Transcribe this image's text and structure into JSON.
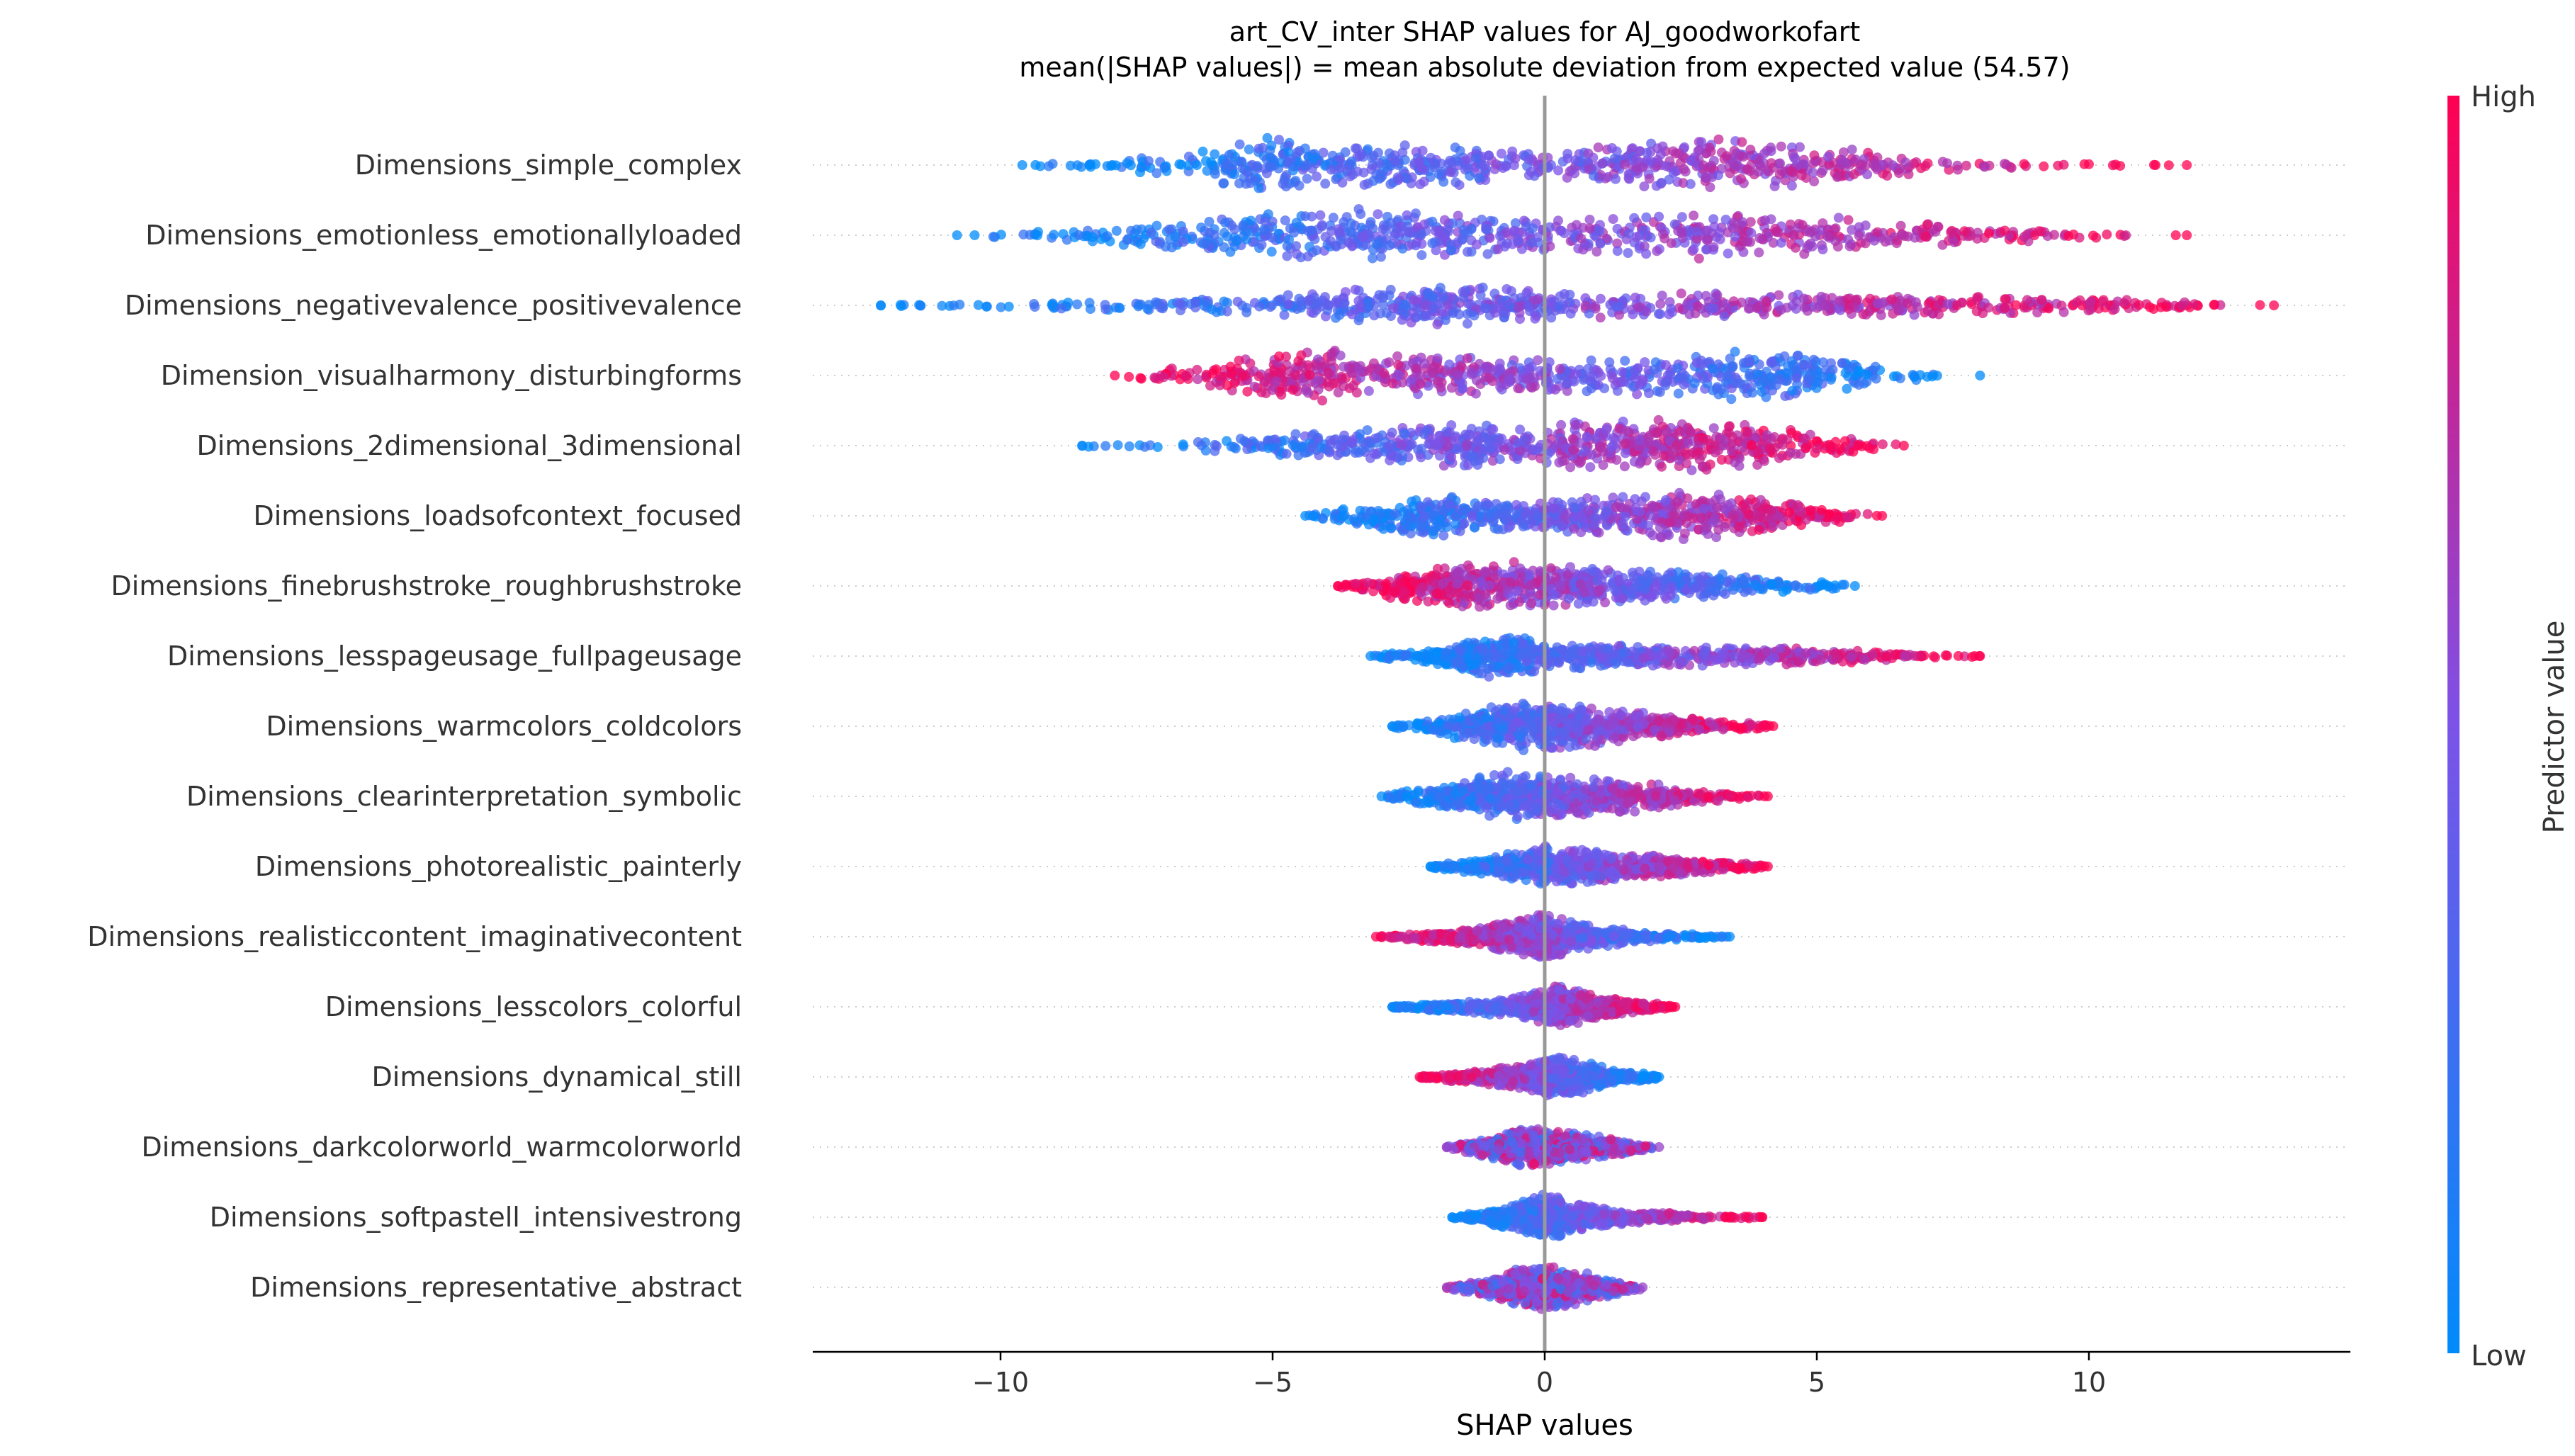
{
  "chart_data": {
    "type": "scatter",
    "subtype": "beeswarm",
    "title": "art_CV_inter SHAP values for AJ_goodworkofart",
    "subtitle": "mean(|SHAP values|) = mean absolute deviation from expected value (54.57)",
    "xlabel": "SHAP values",
    "xlim": [
      -13.4,
      14.8
    ],
    "xticks": [
      {
        "value": -10,
        "label": "−10"
      },
      {
        "value": -5,
        "label": "−5"
      },
      {
        "value": 0,
        "label": "0"
      },
      {
        "value": 5,
        "label": "5"
      },
      {
        "value": 10,
        "label": "10"
      }
    ],
    "zero_line": true,
    "grid": false,
    "colorbar": {
      "label": "Predictor value",
      "high_label": "High",
      "low_label": "Low",
      "low_color": "#008bfb",
      "high_color": "#ff0052"
    },
    "features": [
      {
        "name": "Dimensions_simple_complex",
        "min": -9.6,
        "max": 11.8,
        "density": [
          [
            -9.6,
            0.05
          ],
          [
            -8,
            0.15
          ],
          [
            -6.5,
            0.5
          ],
          [
            -5,
            0.95
          ],
          [
            -3.5,
            0.7
          ],
          [
            -2.5,
            0.85
          ],
          [
            -1,
            0.6
          ],
          [
            0,
            0.5
          ],
          [
            1.5,
            0.75
          ],
          [
            3,
            1.0
          ],
          [
            4.5,
            0.8
          ],
          [
            6,
            0.45
          ],
          [
            7.5,
            0.2
          ],
          [
            9,
            0.08
          ],
          [
            10.3,
            0.04
          ],
          [
            11.8,
            0.02
          ]
        ],
        "color_trend": "increasing"
      },
      {
        "name": "Dimensions_emotionless_emotionallyloaded",
        "min": -10.8,
        "max": 11.8,
        "density": [
          [
            -10.8,
            0.05
          ],
          [
            -9,
            0.15
          ],
          [
            -7,
            0.5
          ],
          [
            -5,
            0.85
          ],
          [
            -3.5,
            0.9
          ],
          [
            -2,
            0.85
          ],
          [
            -1,
            0.7
          ],
          [
            0,
            0.55
          ],
          [
            1.5,
            0.7
          ],
          [
            3,
            0.85
          ],
          [
            4.5,
            0.75
          ],
          [
            6,
            0.55
          ],
          [
            7.5,
            0.4
          ],
          [
            9,
            0.22
          ],
          [
            10.5,
            0.08
          ],
          [
            11.8,
            0.02
          ]
        ],
        "color_trend": "increasing"
      },
      {
        "name": "Dimensions_negativevalence_positivevalence",
        "min": -12.2,
        "max": 13.4,
        "density": [
          [
            -12.2,
            0.03
          ],
          [
            -10,
            0.1
          ],
          [
            -7,
            0.2
          ],
          [
            -5,
            0.35
          ],
          [
            -3,
            0.6
          ],
          [
            -2,
            0.75
          ],
          [
            -1,
            0.65
          ],
          [
            0,
            0.5
          ],
          [
            2,
            0.45
          ],
          [
            4,
            0.4
          ],
          [
            6,
            0.38
          ],
          [
            8,
            0.35
          ],
          [
            10,
            0.28
          ],
          [
            11.5,
            0.15
          ],
          [
            12.5,
            0.05
          ],
          [
            13.4,
            0.02
          ]
        ],
        "color_trend": "increasing"
      },
      {
        "name": "Dimension_visualharmony_disturbingforms",
        "min": -7.9,
        "max": 8.0,
        "density": [
          [
            -7.9,
            0.05
          ],
          [
            -6.5,
            0.35
          ],
          [
            -5,
            0.8
          ],
          [
            -4,
            0.95
          ],
          [
            -3,
            0.65
          ],
          [
            -1.5,
            0.7
          ],
          [
            0,
            0.6
          ],
          [
            1.5,
            0.65
          ],
          [
            3,
            0.8
          ],
          [
            4.2,
            0.95
          ],
          [
            5.5,
            0.55
          ],
          [
            6.5,
            0.25
          ],
          [
            8,
            0.04
          ]
        ],
        "color_trend": "decreasing"
      },
      {
        "name": "Dimensions_2dimensional_3dimensional",
        "min": -8.5,
        "max": 6.6,
        "density": [
          [
            -8.5,
            0.05
          ],
          [
            -7,
            0.12
          ],
          [
            -5,
            0.35
          ],
          [
            -3.5,
            0.6
          ],
          [
            -2,
            0.75
          ],
          [
            -0.5,
            0.8
          ],
          [
            1,
            0.85
          ],
          [
            2.8,
            0.95
          ],
          [
            4.2,
            0.65
          ],
          [
            5.5,
            0.3
          ],
          [
            6.6,
            0.05
          ]
        ],
        "color_trend": "increasing"
      },
      {
        "name": "Dimensions_loadsofcontext_focused",
        "min": -4.4,
        "max": 6.2,
        "density": [
          [
            -4.4,
            0.05
          ],
          [
            -3.2,
            0.4
          ],
          [
            -2.2,
            0.85
          ],
          [
            -1.3,
            0.55
          ],
          [
            -0.3,
            0.45
          ],
          [
            0.8,
            0.7
          ],
          [
            2,
            0.85
          ],
          [
            3,
            0.8
          ],
          [
            4.2,
            0.6
          ],
          [
            5.2,
            0.35
          ],
          [
            6.2,
            0.05
          ]
        ],
        "color_trend": "increasing"
      },
      {
        "name": "Dimensions_finebrushstroke_roughbrushstroke",
        "min": -3.8,
        "max": 5.7,
        "density": [
          [
            -3.8,
            0.05
          ],
          [
            -2.8,
            0.5
          ],
          [
            -1.2,
            0.9
          ],
          [
            0,
            0.75
          ],
          [
            1.5,
            0.6
          ],
          [
            3,
            0.45
          ],
          [
            4.2,
            0.3
          ],
          [
            5.7,
            0.05
          ]
        ],
        "color_trend": "decreasing"
      },
      {
        "name": "Dimensions_lesspageusage_fullpageusage",
        "min": -3.2,
        "max": 8.0,
        "density": [
          [
            -3.2,
            0.05
          ],
          [
            -1.8,
            0.4
          ],
          [
            -0.8,
            0.9
          ],
          [
            0.2,
            0.45
          ],
          [
            1.5,
            0.4
          ],
          [
            3,
            0.35
          ],
          [
            4.5,
            0.3
          ],
          [
            6,
            0.2
          ],
          [
            6.8,
            0.08
          ],
          [
            8,
            0.03
          ]
        ],
        "color_trend": "increasing"
      },
      {
        "name": "Dimensions_warmcolors_coldcolors",
        "min": -2.8,
        "max": 4.2,
        "density": [
          [
            -2.8,
            0.05
          ],
          [
            -1.5,
            0.5
          ],
          [
            -0.5,
            0.85
          ],
          [
            0.5,
            0.8
          ],
          [
            1.5,
            0.55
          ],
          [
            2.8,
            0.3
          ],
          [
            4.2,
            0.05
          ]
        ],
        "color_trend": "increasing"
      },
      {
        "name": "Dimensions_clearinterpretation_symbolic",
        "min": -3.0,
        "max": 4.1,
        "density": [
          [
            -3,
            0.05
          ],
          [
            -1.8,
            0.45
          ],
          [
            -0.8,
            0.85
          ],
          [
            0.2,
            0.75
          ],
          [
            1,
            0.7
          ],
          [
            2.2,
            0.4
          ],
          [
            3.3,
            0.15
          ],
          [
            4.1,
            0.05
          ]
        ],
        "color_trend": "increasing"
      },
      {
        "name": "Dimensions_photorealistic_painterly",
        "min": -2.1,
        "max": 4.1,
        "density": [
          [
            -2.1,
            0.05
          ],
          [
            -1,
            0.35
          ],
          [
            0,
            0.7
          ],
          [
            0.8,
            0.6
          ],
          [
            1.8,
            0.4
          ],
          [
            3,
            0.25
          ],
          [
            4.1,
            0.05
          ]
        ],
        "color_trend": "increasing"
      },
      {
        "name": "Dimensions_realisticcontent_imaginativecontent",
        "min": -3.1,
        "max": 3.4,
        "density": [
          [
            -3.1,
            0.03
          ],
          [
            -2.2,
            0.2
          ],
          [
            -1,
            0.4
          ],
          [
            0,
            0.85
          ],
          [
            1,
            0.35
          ],
          [
            2.2,
            0.15
          ],
          [
            3.4,
            0.04
          ]
        ],
        "color_trend": "decreasing"
      },
      {
        "name": "Dimensions_lesscolors_colorful",
        "min": -2.8,
        "max": 2.4,
        "density": [
          [
            -2.8,
            0.05
          ],
          [
            -1.5,
            0.2
          ],
          [
            -0.5,
            0.35
          ],
          [
            0.2,
            0.75
          ],
          [
            1,
            0.4
          ],
          [
            1.8,
            0.2
          ],
          [
            2.4,
            0.04
          ]
        ],
        "color_trend": "increasing"
      },
      {
        "name": "Dimensions_dynamical_still",
        "min": -2.3,
        "max": 2.1,
        "density": [
          [
            -2.3,
            0.05
          ],
          [
            -1.2,
            0.25
          ],
          [
            -0.3,
            0.45
          ],
          [
            0.3,
            0.8
          ],
          [
            1,
            0.4
          ],
          [
            2.1,
            0.05
          ]
        ],
        "color_trend": "decreasing"
      },
      {
        "name": "Dimensions_darkcolorworld_warmcolorworld",
        "min": -1.8,
        "max": 2.1,
        "density": [
          [
            -1.8,
            0.05
          ],
          [
            -1,
            0.4
          ],
          [
            -0.2,
            0.75
          ],
          [
            0.5,
            0.5
          ],
          [
            1.3,
            0.3
          ],
          [
            2.1,
            0.05
          ]
        ],
        "color_trend": "mixed"
      },
      {
        "name": "Dimensions_softpastell_intensivestrong",
        "min": -1.7,
        "max": 4.0,
        "density": [
          [
            -1.7,
            0.04
          ],
          [
            -0.8,
            0.35
          ],
          [
            0,
            0.8
          ],
          [
            0.8,
            0.4
          ],
          [
            1.8,
            0.2
          ],
          [
            3,
            0.08
          ],
          [
            4,
            0.03
          ]
        ],
        "color_trend": "increasing"
      },
      {
        "name": "Dimensions_representative_abstract",
        "min": -1.8,
        "max": 1.8,
        "density": [
          [
            -1.8,
            0.05
          ],
          [
            -1,
            0.35
          ],
          [
            -0.1,
            0.85
          ],
          [
            0.8,
            0.5
          ],
          [
            1.8,
            0.05
          ]
        ],
        "color_trend": "mixed"
      }
    ]
  }
}
